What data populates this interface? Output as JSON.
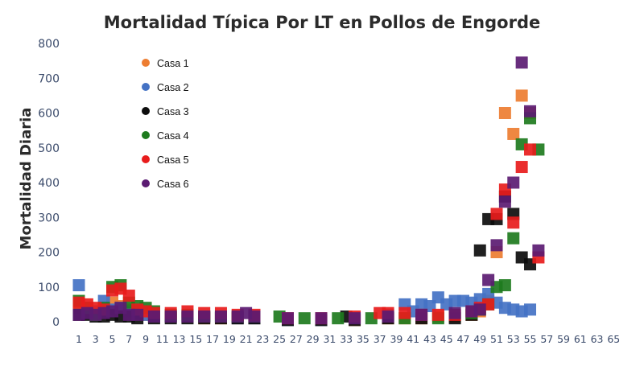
{
  "chart_data": {
    "type": "scatter",
    "title": "Mortalidad Típica Por LT en Pollos de Engorde",
    "xlabel": "",
    "ylabel": "Mortalidad Diaria",
    "ylim": [
      0,
      800
    ],
    "xlim": [
      1,
      65
    ],
    "yticks": [
      "0",
      "100",
      "200",
      "300",
      "400",
      "500",
      "600",
      "700",
      "800"
    ],
    "xticks": [
      "1",
      "3",
      "5",
      "7",
      "9",
      "11",
      "13",
      "15",
      "17",
      "19",
      "21",
      "23",
      "25",
      "27",
      "29",
      "31",
      "33",
      "35",
      "37",
      "39",
      "41",
      "43",
      "45",
      "47",
      "49",
      "51",
      "53",
      "55",
      "57",
      "59",
      "61",
      "63",
      "65"
    ],
    "grid": false,
    "legend_position": "top-left",
    "series": [
      {
        "name": "Casa 1",
        "color": "#ed7d31",
        "points": [
          [
            1,
            40
          ],
          [
            2,
            30
          ],
          [
            3,
            30
          ],
          [
            4,
            25
          ],
          [
            5,
            55
          ],
          [
            6,
            45
          ],
          [
            7,
            35
          ],
          [
            8,
            25
          ],
          [
            9,
            20
          ],
          [
            10,
            15
          ],
          [
            12,
            15
          ],
          [
            14,
            15
          ],
          [
            16,
            10
          ],
          [
            18,
            10
          ],
          [
            20,
            10
          ],
          [
            22,
            10
          ],
          [
            26,
            5
          ],
          [
            30,
            5
          ],
          [
            34,
            5
          ],
          [
            38,
            10
          ],
          [
            40,
            10
          ],
          [
            42,
            10
          ],
          [
            44,
            15
          ],
          [
            46,
            15
          ],
          [
            48,
            20
          ],
          [
            49,
            30
          ],
          [
            50,
            60
          ],
          [
            51,
            200
          ],
          [
            52,
            600
          ],
          [
            53,
            540
          ],
          [
            54,
            650
          ],
          [
            55,
            600
          ]
        ]
      },
      {
        "name": "Casa 2",
        "color": "#4472c4",
        "points": [
          [
            1,
            105
          ],
          [
            2,
            40
          ],
          [
            3,
            30
          ],
          [
            4,
            60
          ],
          [
            5,
            35
          ],
          [
            6,
            40
          ],
          [
            7,
            30
          ],
          [
            8,
            25
          ],
          [
            9,
            20
          ],
          [
            10,
            15
          ],
          [
            12,
            15
          ],
          [
            14,
            15
          ],
          [
            16,
            15
          ],
          [
            18,
            15
          ],
          [
            20,
            10
          ],
          [
            22,
            10
          ],
          [
            26,
            5
          ],
          [
            30,
            5
          ],
          [
            34,
            10
          ],
          [
            38,
            20
          ],
          [
            40,
            50
          ],
          [
            41,
            30
          ],
          [
            42,
            50
          ],
          [
            43,
            45
          ],
          [
            44,
            70
          ],
          [
            45,
            50
          ],
          [
            46,
            60
          ],
          [
            47,
            60
          ],
          [
            48,
            55
          ],
          [
            49,
            65
          ],
          [
            50,
            80
          ],
          [
            51,
            55
          ],
          [
            52,
            40
          ],
          [
            53,
            35
          ],
          [
            54,
            30
          ],
          [
            55,
            35
          ]
        ]
      },
      {
        "name": "Casa 3",
        "color": "#0d0d0d",
        "points": [
          [
            1,
            20
          ],
          [
            2,
            20
          ],
          [
            3,
            15
          ],
          [
            4,
            15
          ],
          [
            5,
            20
          ],
          [
            6,
            15
          ],
          [
            7,
            15
          ],
          [
            8,
            10
          ],
          [
            10,
            10
          ],
          [
            12,
            10
          ],
          [
            14,
            10
          ],
          [
            16,
            10
          ],
          [
            18,
            10
          ],
          [
            20,
            10
          ],
          [
            22,
            10
          ],
          [
            26,
            5
          ],
          [
            30,
            5
          ],
          [
            33,
            15
          ],
          [
            34,
            5
          ],
          [
            38,
            10
          ],
          [
            42,
            10
          ],
          [
            46,
            10
          ],
          [
            48,
            20
          ],
          [
            49,
            205
          ],
          [
            50,
            295
          ],
          [
            51,
            295
          ],
          [
            52,
            360
          ],
          [
            53,
            310
          ],
          [
            54,
            185
          ],
          [
            55,
            165
          ]
        ]
      },
      {
        "name": "Casa 4",
        "color": "#1e7b1e",
        "points": [
          [
            1,
            60
          ],
          [
            2,
            40
          ],
          [
            3,
            20
          ],
          [
            4,
            40
          ],
          [
            5,
            100
          ],
          [
            6,
            105
          ],
          [
            7,
            55
          ],
          [
            8,
            45
          ],
          [
            9,
            40
          ],
          [
            10,
            30
          ],
          [
            12,
            20
          ],
          [
            14,
            20
          ],
          [
            16,
            15
          ],
          [
            18,
            15
          ],
          [
            20,
            15
          ],
          [
            22,
            15
          ],
          [
            25,
            15
          ],
          [
            28,
            10
          ],
          [
            32,
            10
          ],
          [
            36,
            10
          ],
          [
            40,
            10
          ],
          [
            44,
            10
          ],
          [
            48,
            25
          ],
          [
            49,
            35
          ],
          [
            50,
            50
          ],
          [
            51,
            100
          ],
          [
            52,
            105
          ],
          [
            53,
            240
          ],
          [
            54,
            510
          ],
          [
            55,
            585
          ],
          [
            56,
            495
          ]
        ]
      },
      {
        "name": "Casa 5",
        "color": "#e81c1c",
        "points": [
          [
            1,
            55
          ],
          [
            2,
            50
          ],
          [
            3,
            40
          ],
          [
            4,
            35
          ],
          [
            5,
            90
          ],
          [
            6,
            95
          ],
          [
            7,
            75
          ],
          [
            8,
            35
          ],
          [
            9,
            30
          ],
          [
            10,
            25
          ],
          [
            12,
            25
          ],
          [
            14,
            30
          ],
          [
            16,
            25
          ],
          [
            18,
            25
          ],
          [
            20,
            20
          ],
          [
            22,
            20
          ],
          [
            26,
            10
          ],
          [
            30,
            10
          ],
          [
            34,
            15
          ],
          [
            37,
            25
          ],
          [
            38,
            25
          ],
          [
            40,
            25
          ],
          [
            42,
            20
          ],
          [
            44,
            20
          ],
          [
            46,
            20
          ],
          [
            48,
            30
          ],
          [
            49,
            40
          ],
          [
            50,
            50
          ],
          [
            51,
            310
          ],
          [
            52,
            380
          ],
          [
            53,
            285
          ],
          [
            54,
            445
          ],
          [
            55,
            495
          ],
          [
            56,
            185
          ]
        ]
      },
      {
        "name": "Casa 6",
        "color": "#5b1b72",
        "points": [
          [
            1,
            20
          ],
          [
            2,
            25
          ],
          [
            3,
            20
          ],
          [
            4,
            25
          ],
          [
            5,
            30
          ],
          [
            6,
            40
          ],
          [
            7,
            20
          ],
          [
            8,
            20
          ],
          [
            10,
            15
          ],
          [
            12,
            15
          ],
          [
            14,
            15
          ],
          [
            16,
            15
          ],
          [
            18,
            15
          ],
          [
            20,
            15
          ],
          [
            21,
            25
          ],
          [
            22,
            15
          ],
          [
            26,
            10
          ],
          [
            30,
            10
          ],
          [
            34,
            10
          ],
          [
            38,
            15
          ],
          [
            42,
            20
          ],
          [
            46,
            25
          ],
          [
            48,
            30
          ],
          [
            49,
            35
          ],
          [
            50,
            120
          ],
          [
            51,
            220
          ],
          [
            52,
            345
          ],
          [
            53,
            400
          ],
          [
            54,
            745
          ],
          [
            55,
            605
          ],
          [
            56,
            205
          ]
        ]
      }
    ]
  }
}
